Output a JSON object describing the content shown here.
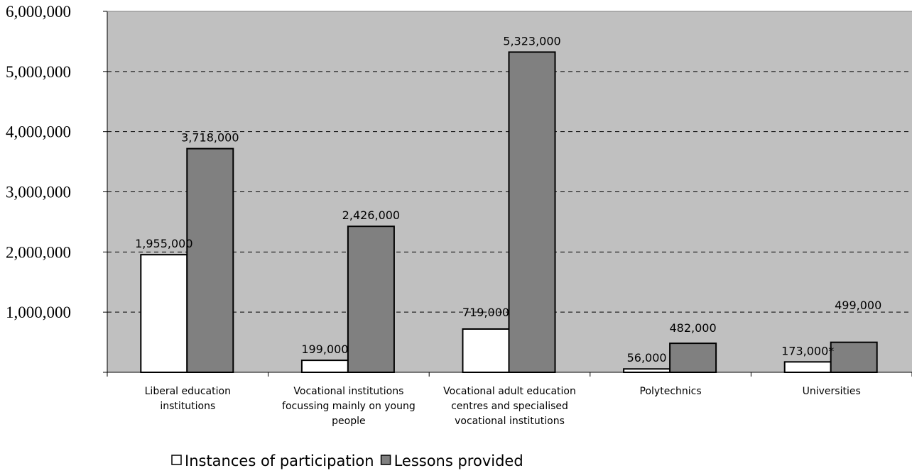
{
  "chart_data": {
    "type": "bar",
    "categories": [
      [
        "Liberal education",
        "institutions"
      ],
      [
        "Vocational institutions",
        "focussing mainly on young",
        "people"
      ],
      [
        "Vocational adult education",
        "centres and specialised",
        "vocational institutions"
      ],
      [
        "Polytechnics"
      ],
      [
        "Universities"
      ]
    ],
    "series": [
      {
        "name": "Instances of participation",
        "color": "#ffffff",
        "values": [
          1955000,
          199000,
          719000,
          56000,
          173000
        ],
        "labels": [
          "1,955,000",
          "199,000",
          "719,000",
          "56,000",
          "173,000*"
        ]
      },
      {
        "name": "Lessons provided",
        "color": "#808080",
        "values": [
          3718000,
          2426000,
          5323000,
          482000,
          499000
        ],
        "labels": [
          "3,718,000",
          "2,426,000",
          "5,323,000",
          "482,000",
          "499,000"
        ]
      }
    ],
    "ylim": [
      0,
      6000000
    ],
    "yticks": [
      {
        "value": 1000000,
        "label": "1,000,000"
      },
      {
        "value": 2000000,
        "label": "2,000,000"
      },
      {
        "value": 3000000,
        "label": "3,000,000"
      },
      {
        "value": 4000000,
        "label": "4,000,000"
      },
      {
        "value": 5000000,
        "label": "5,000,000"
      },
      {
        "value": 6000000,
        "label": "6,000,000"
      }
    ],
    "grid": true,
    "plot_background": "#c0c0c0",
    "legend_position": "bottom"
  }
}
